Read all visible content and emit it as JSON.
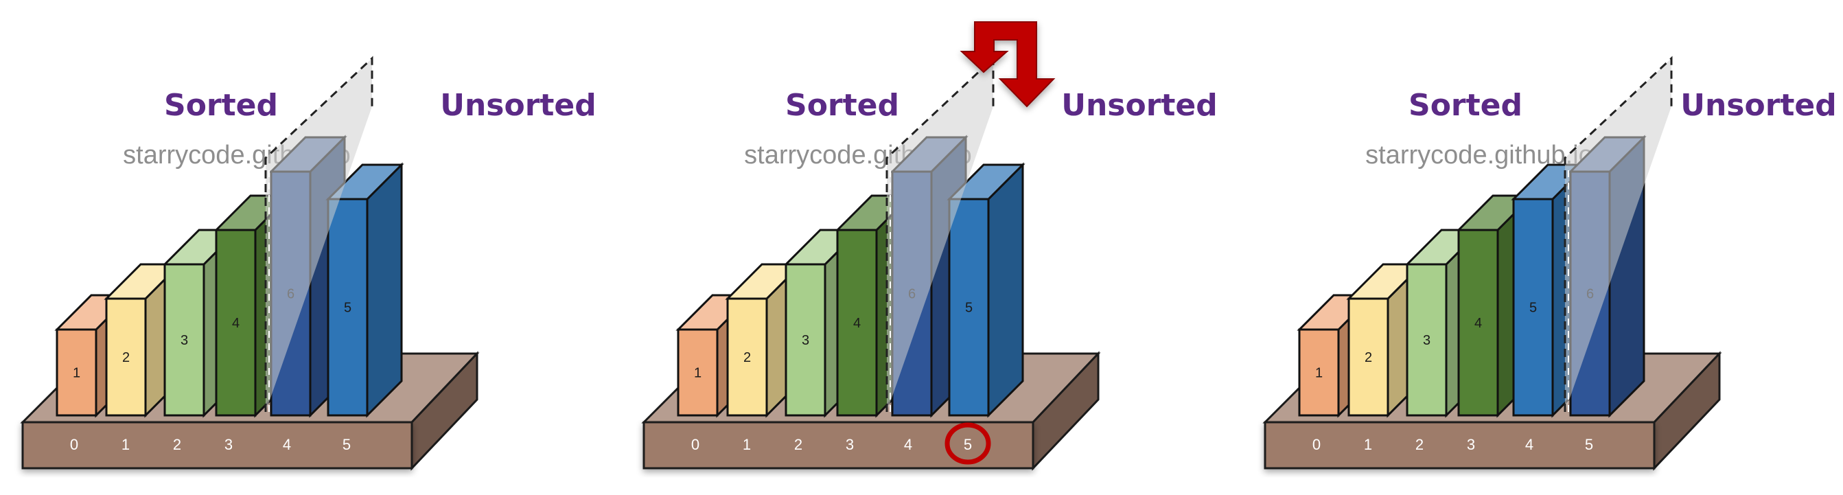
{
  "labels": {
    "sorted": "Sorted",
    "unsorted": "Unsorted",
    "watermark": "starrycode.github.io"
  },
  "colors": {
    "1": "#f0a87a",
    "2": "#fbe39a",
    "3": "#a8cf8c",
    "4": "#548235",
    "5": "#2e75b6",
    "6": "#2f5597",
    "base": "#9e7c6b",
    "arrow": "#c00000"
  },
  "panels": [
    {
      "id": "before",
      "order": [
        1,
        2,
        3,
        4,
        6,
        5
      ],
      "indices": [
        "0",
        "1",
        "2",
        "3",
        "4",
        "5"
      ],
      "sorted_count": 4,
      "highlight_index": null,
      "arrow": false
    },
    {
      "id": "select",
      "order": [
        1,
        2,
        3,
        4,
        6,
        5
      ],
      "indices": [
        "0",
        "1",
        "2",
        "3",
        "4",
        "5"
      ],
      "sorted_count": 4,
      "highlight_index": 5,
      "arrow": true
    },
    {
      "id": "after",
      "order": [
        1,
        2,
        3,
        4,
        5,
        6
      ],
      "indices": [
        "0",
        "1",
        "2",
        "3",
        "4",
        "5"
      ],
      "sorted_count": 5,
      "highlight_index": null,
      "arrow": false
    }
  ]
}
